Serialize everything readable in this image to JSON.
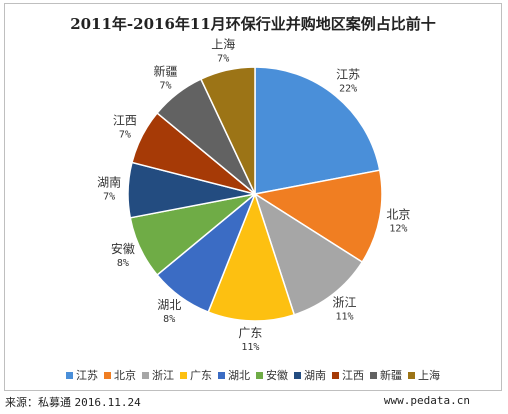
{
  "chart_data": {
    "type": "pie",
    "title": "2011年-2016年11月环保行业并购地区案例占比前十",
    "categories": [
      "江苏",
      "北京",
      "浙江",
      "广东",
      "湖北",
      "安徽",
      "湖南",
      "江西",
      "新疆",
      "上海"
    ],
    "values": [
      22,
      12,
      11,
      11,
      8,
      8,
      7,
      7,
      7,
      7
    ],
    "value_labels": [
      "22%",
      "12%",
      "11%",
      "11%",
      "8%",
      "8%",
      "7%",
      "7%",
      "7%",
      "7%"
    ],
    "colors": [
      "#4a8fd9",
      "#f07e22",
      "#a6a6a6",
      "#fdc011",
      "#3b6cc4",
      "#6fac46",
      "#234c80",
      "#a63a06",
      "#626262",
      "#9c7416"
    ],
    "legend_position": "bottom",
    "start_angle_deg": 0,
    "direction": "clockwise"
  },
  "footer": {
    "source_label": "来源：私募通",
    "source_date": "2016.11.24",
    "website": "www.pedata.cn"
  }
}
